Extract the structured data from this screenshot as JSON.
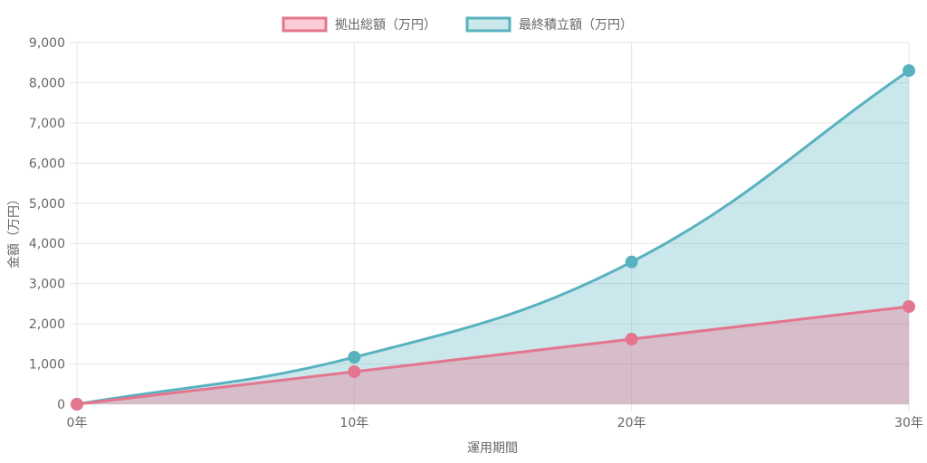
{
  "chart_data": {
    "type": "area",
    "categories": [
      "0年",
      "10年",
      "20年",
      "30年"
    ],
    "series": [
      {
        "name": "拠出総額（万円）",
        "values": [
          0,
          810,
          1620,
          2430
        ],
        "color": "#e4758e",
        "fill": "rgba(240,110,140,0.35)"
      },
      {
        "name": "最終積立額（万円）",
        "values": [
          0,
          1170,
          3540,
          8300
        ],
        "color": "#58b2be",
        "fill": "rgba(90,180,192,0.32)"
      }
    ],
    "xlabel": "運用期間",
    "ylabel": "金額（万円）",
    "ylim": [
      0,
      9000
    ],
    "y_ticks": [
      0,
      1000,
      2000,
      3000,
      4000,
      5000,
      6000,
      7000,
      8000,
      9000
    ],
    "y_tick_labels": [
      "0",
      "1,000",
      "2,000",
      "3,000",
      "4,000",
      "5,000",
      "6,000",
      "7,000",
      "8,000",
      "9,000"
    ],
    "grid": true,
    "smooth": true,
    "legend_position": "top"
  }
}
